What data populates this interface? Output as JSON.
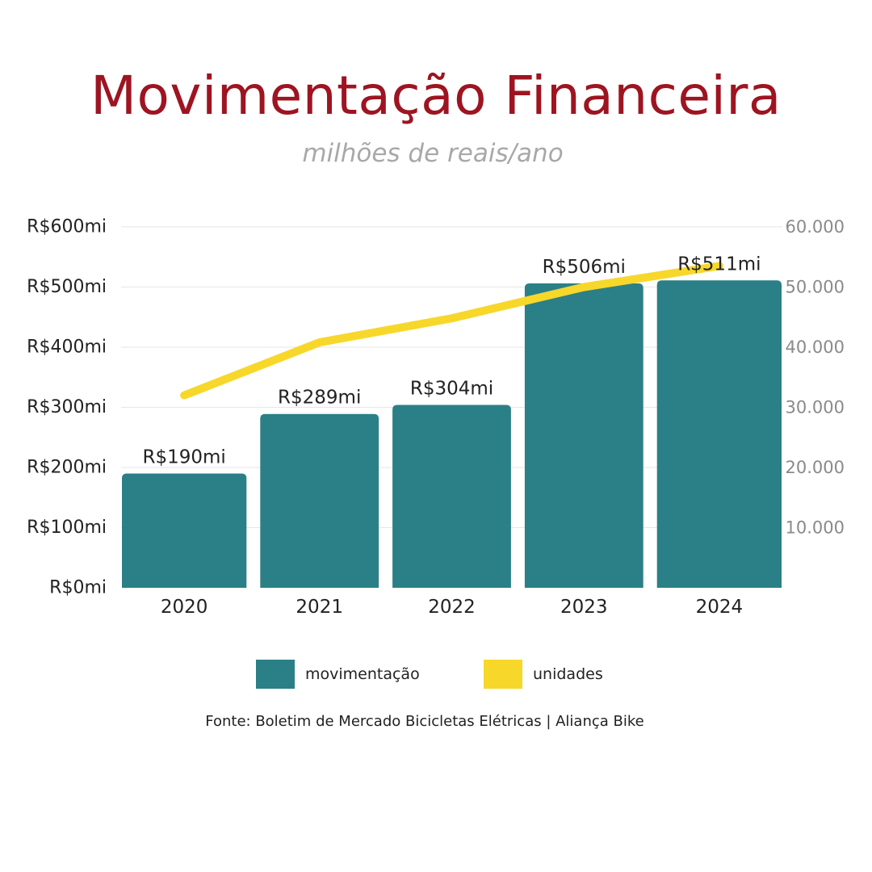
{
  "title": "Movimentação Financeira",
  "subtitle": "milhões de reais/ano",
  "source": "Fonte: Boletim de Mercado Bicicletas Elétricas | Aliança Bike",
  "colors": {
    "title": "#9e1421",
    "bar": "#2a8086",
    "line": "#f7d72a",
    "grid": "#e6e6e6",
    "axis_left_text": "#222222",
    "axis_right_text": "#8a8a8a"
  },
  "chart_data": {
    "type": "bar",
    "categories": [
      "2020",
      "2021",
      "2022",
      "2023",
      "2024"
    ],
    "series": [
      {
        "name": "movimentação",
        "type": "bar",
        "axis": "left",
        "values": [
          190,
          289,
          304,
          506,
          511
        ],
        "data_labels": [
          "R$190mi",
          "R$289mi",
          "R$304mi",
          "R$506mi",
          "R$511mi"
        ]
      },
      {
        "name": "unidades",
        "type": "line",
        "axis": "right",
        "values": [
          32000,
          40800,
          44800,
          50000,
          53500
        ]
      }
    ],
    "y_left": {
      "range": [
        0,
        600
      ],
      "ticks": [
        0,
        100,
        200,
        300,
        400,
        500,
        600
      ],
      "tick_labels": [
        "R$0mi",
        "R$100mi",
        "R$200mi",
        "R$300mi",
        "R$400mi",
        "R$500mi",
        "R$600mi"
      ]
    },
    "y_right": {
      "range": [
        0,
        60000
      ],
      "ticks": [
        10000,
        20000,
        30000,
        40000,
        50000,
        60000
      ],
      "tick_labels": [
        "10.000",
        "20.000",
        "30.000",
        "40.000",
        "50.000",
        "60.000"
      ]
    },
    "grid": true,
    "legend_position": "bottom"
  }
}
